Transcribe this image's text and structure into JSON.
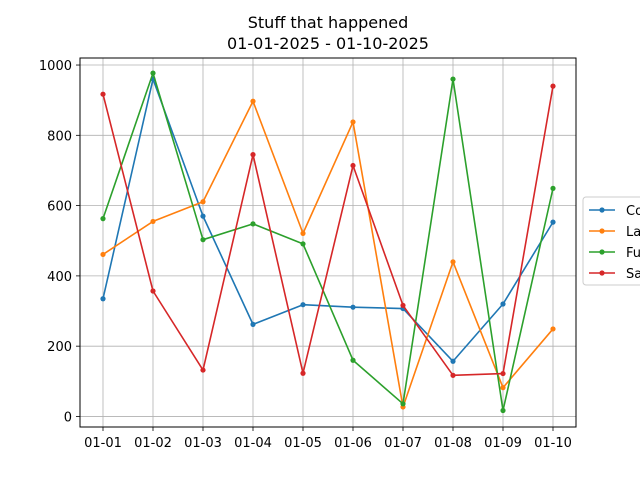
{
  "chart_data": {
    "type": "line",
    "title": "Stuff that happened",
    "subtitle": "01-01-2025 - 01-10-2025",
    "xlabel": "",
    "ylabel": "",
    "categories": [
      "01-01",
      "01-02",
      "01-03",
      "01-04",
      "01-05",
      "01-06",
      "01-07",
      "01-08",
      "01-09",
      "01-10"
    ],
    "ylim": [
      -30,
      1020
    ],
    "yticks": [
      0,
      200,
      400,
      600,
      800,
      1000
    ],
    "grid": true,
    "legend_placement": "right, partially cut off",
    "series": [
      {
        "name": "Co",
        "color": "#1f77b4",
        "values": [
          335,
          960,
          570,
          262,
          318,
          311,
          307,
          157,
          320,
          553
        ]
      },
      {
        "name": "La",
        "color": "#ff7f0e",
        "values": [
          461,
          555,
          611,
          897,
          521,
          838,
          27,
          440,
          82,
          249
        ]
      },
      {
        "name": "Fu",
        "color": "#2ca02c",
        "values": [
          563,
          977,
          503,
          548,
          491,
          160,
          36,
          960,
          17,
          649
        ]
      },
      {
        "name": "Sa",
        "color": "#d62728",
        "values": [
          917,
          357,
          132,
          745,
          123,
          714,
          316,
          117,
          122,
          940
        ]
      }
    ]
  }
}
